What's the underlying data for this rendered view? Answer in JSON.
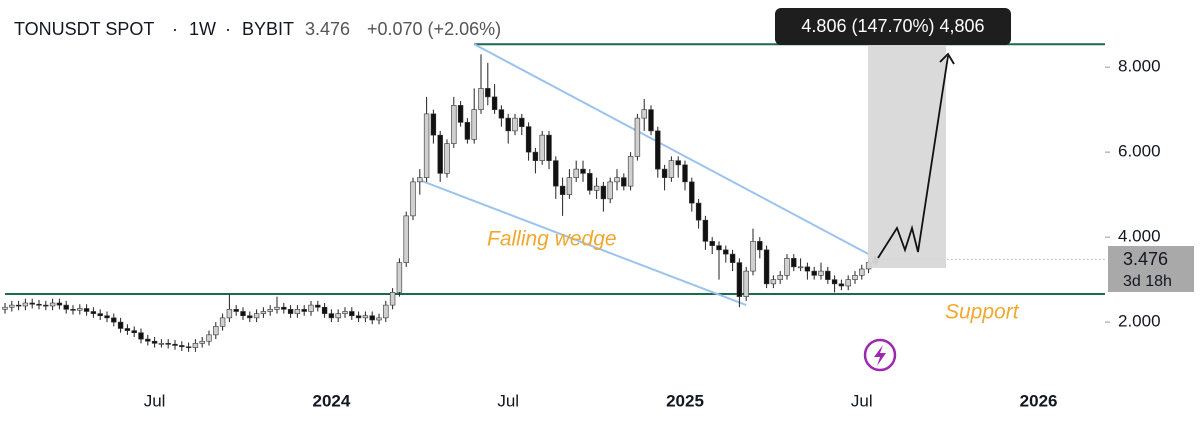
{
  "chart_data": {
    "type": "candlestick",
    "header": {
      "symbol": "TONUSDT SPOT",
      "separator": "·",
      "interval": "1W",
      "exchange": "BYBIT",
      "price": "3.476",
      "change": "+0.070 (+2.06%)"
    },
    "measure_label": "4.806 (147.70%) 4,806",
    "annotations": [
      "Falling wedge",
      "Support"
    ],
    "price_tag": {
      "price": "3.476",
      "countdown": "3d 18h"
    },
    "up_color": "#d0d0d0",
    "down_color": "#111111",
    "wick_color": "#222222",
    "ylim": [
      0.52,
      9.58
    ],
    "yticks": [
      {
        "value": 2,
        "label": "2.000"
      },
      {
        "value": 4,
        "label": "4.000"
      },
      {
        "value": 6,
        "label": "6.000"
      },
      {
        "value": 8,
        "label": "8.000"
      }
    ],
    "levels": [
      {
        "value": 8.54,
        "from": 69,
        "color": "#1b6b4a"
      },
      {
        "value": 2.66,
        "from": 0,
        "color": "#1b6b4a"
      }
    ],
    "trendlines": [
      {
        "x": [
          69,
          127
        ],
        "y": [
          8.54,
          3.6
        ],
        "color": "#9cc3ee"
      },
      {
        "x": [
          61,
          109
        ],
        "y": [
          5.34,
          2.4
        ],
        "color": "#9cc3ee"
      }
    ],
    "categories": [
      null,
      null,
      null,
      null,
      null,
      null,
      null,
      null,
      null,
      null,
      null,
      null,
      null,
      null,
      null,
      null,
      null,
      null,
      null,
      null,
      null,
      null,
      "Jul",
      null,
      null,
      null,
      null,
      null,
      null,
      null,
      null,
      null,
      null,
      null,
      null,
      null,
      null,
      null,
      null,
      null,
      null,
      null,
      null,
      null,
      null,
      null,
      null,
      null,
      "2024",
      null,
      null,
      null,
      null,
      null,
      null,
      null,
      null,
      null,
      null,
      null,
      null,
      null,
      null,
      null,
      null,
      null,
      null,
      null,
      null,
      null,
      null,
      null,
      null,
      null,
      "Jul",
      null,
      null,
      null,
      null,
      null,
      null,
      null,
      null,
      null,
      null,
      null,
      null,
      null,
      null,
      null,
      null,
      null,
      null,
      null,
      null,
      null,
      null,
      null,
      null,
      null,
      "2025",
      null,
      null,
      null,
      null,
      null,
      null,
      null,
      null,
      null,
      null,
      null,
      null,
      null,
      null,
      null,
      null,
      null,
      null,
      null,
      null,
      null,
      null,
      null,
      null,
      null,
      "Jul",
      null,
      null,
      null,
      null,
      null,
      null,
      null,
      null,
      null,
      null,
      null,
      null,
      null,
      null,
      null,
      null,
      null,
      null,
      null,
      null,
      null,
      null,
      null,
      null,
      null,
      "2026",
      null,
      null,
      null,
      null,
      null,
      null,
      null
    ],
    "open": [
      2.3,
      2.35,
      2.4,
      2.38,
      2.45,
      2.42,
      2.4,
      2.38,
      2.45,
      2.4,
      2.3,
      2.28,
      2.32,
      2.25,
      2.2,
      2.15,
      2.1,
      2.0,
      1.85,
      1.8,
      1.75,
      1.6,
      1.55,
      1.5,
      1.5,
      1.48,
      1.45,
      1.42,
      1.4,
      1.5,
      1.55,
      1.7,
      1.9,
      2.1,
      2.3,
      2.25,
      2.15,
      2.1,
      2.2,
      2.25,
      2.3,
      2.35,
      2.3,
      2.2,
      2.3,
      2.25,
      2.4,
      2.35,
      2.2,
      2.1,
      2.2,
      2.25,
      2.15,
      2.1,
      2.15,
      2.05,
      2.1,
      2.4,
      2.7,
      3.4,
      4.5,
      5.3,
      5.4,
      6.9,
      6.4,
      5.5,
      6.2,
      7.1,
      6.7,
      6.3,
      7.0,
      7.5,
      7.3,
      7.0,
      6.8,
      6.5,
      6.8,
      6.6,
      6.0,
      5.8,
      6.4,
      5.8,
      5.2,
      5.0,
      5.4,
      5.6,
      5.5,
      5.1,
      5.2,
      4.9,
      5.3,
      5.4,
      5.2,
      5.9,
      6.8,
      7.0,
      6.5,
      5.6,
      5.4,
      5.8,
      5.7,
      5.3,
      4.8,
      4.4,
      3.9,
      3.8,
      3.7,
      3.6,
      3.4,
      2.6,
      3.2,
      3.9,
      3.7,
      2.9,
      3.0,
      3.1,
      3.5,
      3.3,
      3.3,
      3.2,
      3.1,
      3.2,
      3.0,
      2.9,
      2.85,
      3.0,
      3.1,
      3.25,
      3.4,
      null,
      null,
      null,
      null,
      null,
      null,
      null,
      null,
      null,
      null,
      null,
      null,
      null,
      null,
      null,
      null,
      null,
      null,
      null,
      null,
      null,
      null,
      null,
      null,
      null,
      null,
      null,
      null,
      null,
      null,
      null
    ],
    "high": [
      2.45,
      2.5,
      2.5,
      2.55,
      2.55,
      2.52,
      2.5,
      2.55,
      2.55,
      2.5,
      2.4,
      2.42,
      2.42,
      2.35,
      2.3,
      2.25,
      2.2,
      2.1,
      1.95,
      1.9,
      1.85,
      1.7,
      1.65,
      1.6,
      1.6,
      1.58,
      1.55,
      1.52,
      1.6,
      1.65,
      1.8,
      2.0,
      2.2,
      2.65,
      2.4,
      2.35,
      2.25,
      2.3,
      2.35,
      2.4,
      2.6,
      2.45,
      2.4,
      2.4,
      2.4,
      2.5,
      2.5,
      2.45,
      2.3,
      2.3,
      2.35,
      2.35,
      2.25,
      2.25,
      2.25,
      2.2,
      2.5,
      2.8,
      3.5,
      4.6,
      5.4,
      5.6,
      7.3,
      7.0,
      6.5,
      6.3,
      7.3,
      7.2,
      6.8,
      7.5,
      8.3,
      8.1,
      7.6,
      7.1,
      6.9,
      6.9,
      6.9,
      6.7,
      6.1,
      6.5,
      6.5,
      5.9,
      5.4,
      5.6,
      5.8,
      5.8,
      5.6,
      5.4,
      5.3,
      5.4,
      5.6,
      5.5,
      6.0,
      6.9,
      7.25,
      7.1,
      6.6,
      5.7,
      5.9,
      5.9,
      5.8,
      5.4,
      4.9,
      4.5,
      4.0,
      3.9,
      3.8,
      3.7,
      3.5,
      3.3,
      4.2,
      4.0,
      3.8,
      3.1,
      3.2,
      3.6,
      3.6,
      3.5,
      3.4,
      3.3,
      3.4,
      3.3,
      3.1,
      3.0,
      3.1,
      3.2,
      3.35,
      3.5,
      3.55,
      null,
      null,
      null,
      null,
      null,
      null,
      null,
      null,
      null,
      null,
      null,
      null,
      null,
      null,
      null,
      null,
      null,
      null,
      null,
      null,
      null,
      null,
      null,
      null,
      null,
      null,
      null,
      null,
      null,
      null,
      null
    ],
    "low": [
      2.2,
      2.25,
      2.28,
      2.28,
      2.32,
      2.3,
      2.28,
      2.28,
      2.3,
      2.2,
      2.18,
      2.18,
      2.15,
      2.1,
      2.05,
      2.0,
      1.9,
      1.75,
      1.7,
      1.65,
      1.5,
      1.45,
      1.4,
      1.4,
      1.38,
      1.35,
      1.32,
      1.3,
      1.3,
      1.4,
      1.45,
      1.6,
      1.8,
      2.0,
      2.15,
      2.05,
      2.0,
      2.0,
      2.1,
      2.15,
      2.2,
      2.2,
      2.1,
      2.1,
      2.15,
      2.15,
      2.25,
      2.1,
      2.0,
      2.0,
      2.1,
      2.05,
      2.0,
      2.0,
      1.95,
      1.95,
      2.0,
      2.3,
      2.6,
      3.3,
      4.4,
      5.0,
      5.3,
      6.2,
      5.3,
      5.4,
      6.1,
      6.6,
      6.2,
      6.2,
      6.9,
      7.1,
      6.9,
      6.6,
      6.2,
      6.4,
      6.4,
      5.8,
      5.5,
      5.7,
      5.6,
      4.9,
      4.5,
      4.9,
      5.3,
      5.3,
      5.0,
      4.9,
      4.6,
      4.8,
      5.1,
      5.1,
      5.1,
      5.8,
      6.5,
      6.4,
      5.4,
      5.1,
      5.3,
      5.4,
      5.1,
      4.6,
      4.2,
      3.7,
      3.6,
      3.0,
      3.4,
      3.2,
      2.35,
      2.5,
      3.1,
      3.5,
      2.8,
      2.8,
      2.9,
      3.0,
      3.2,
      3.2,
      3.0,
      3.0,
      3.0,
      2.9,
      2.7,
      2.75,
      2.75,
      2.9,
      3.0,
      3.15,
      3.35,
      null,
      null,
      null,
      null,
      null,
      null,
      null,
      null,
      null,
      null,
      null,
      null,
      null,
      null,
      null,
      null,
      null,
      null,
      null,
      null,
      null,
      null,
      null,
      null,
      null,
      null,
      null,
      null,
      null,
      null,
      null
    ],
    "close": [
      2.35,
      2.4,
      2.38,
      2.45,
      2.42,
      2.4,
      2.38,
      2.45,
      2.4,
      2.3,
      2.28,
      2.32,
      2.25,
      2.2,
      2.15,
      2.1,
      2.0,
      1.85,
      1.8,
      1.75,
      1.6,
      1.55,
      1.5,
      1.5,
      1.48,
      1.45,
      1.42,
      1.4,
      1.5,
      1.55,
      1.7,
      1.9,
      2.1,
      2.3,
      2.25,
      2.15,
      2.1,
      2.2,
      2.25,
      2.3,
      2.35,
      2.3,
      2.2,
      2.3,
      2.25,
      2.4,
      2.35,
      2.2,
      2.1,
      2.2,
      2.25,
      2.15,
      2.1,
      2.15,
      2.05,
      2.1,
      2.4,
      2.7,
      3.4,
      4.5,
      5.3,
      5.4,
      6.9,
      6.4,
      5.5,
      6.2,
      7.1,
      6.7,
      6.3,
      7.0,
      7.5,
      7.3,
      7.0,
      6.8,
      6.5,
      6.8,
      6.6,
      6.0,
      5.8,
      6.4,
      5.8,
      5.2,
      5.0,
      5.4,
      5.6,
      5.5,
      5.1,
      5.2,
      4.9,
      5.3,
      5.4,
      5.2,
      5.9,
      6.8,
      7.0,
      6.5,
      5.6,
      5.4,
      5.8,
      5.7,
      5.3,
      4.8,
      4.4,
      3.9,
      3.8,
      3.7,
      3.6,
      3.4,
      2.6,
      3.2,
      3.9,
      3.7,
      2.9,
      3.0,
      3.1,
      3.5,
      3.3,
      3.3,
      3.2,
      3.1,
      3.2,
      3.0,
      2.9,
      2.85,
      3.0,
      3.1,
      3.25,
      3.4,
      3.476,
      null,
      null,
      null,
      null,
      null,
      null,
      null,
      null,
      null,
      null,
      null,
      null,
      null,
      null,
      null,
      null,
      null,
      null,
      null,
      null,
      null,
      null,
      null,
      null,
      null,
      null,
      null,
      null,
      null,
      null,
      null
    ]
  }
}
